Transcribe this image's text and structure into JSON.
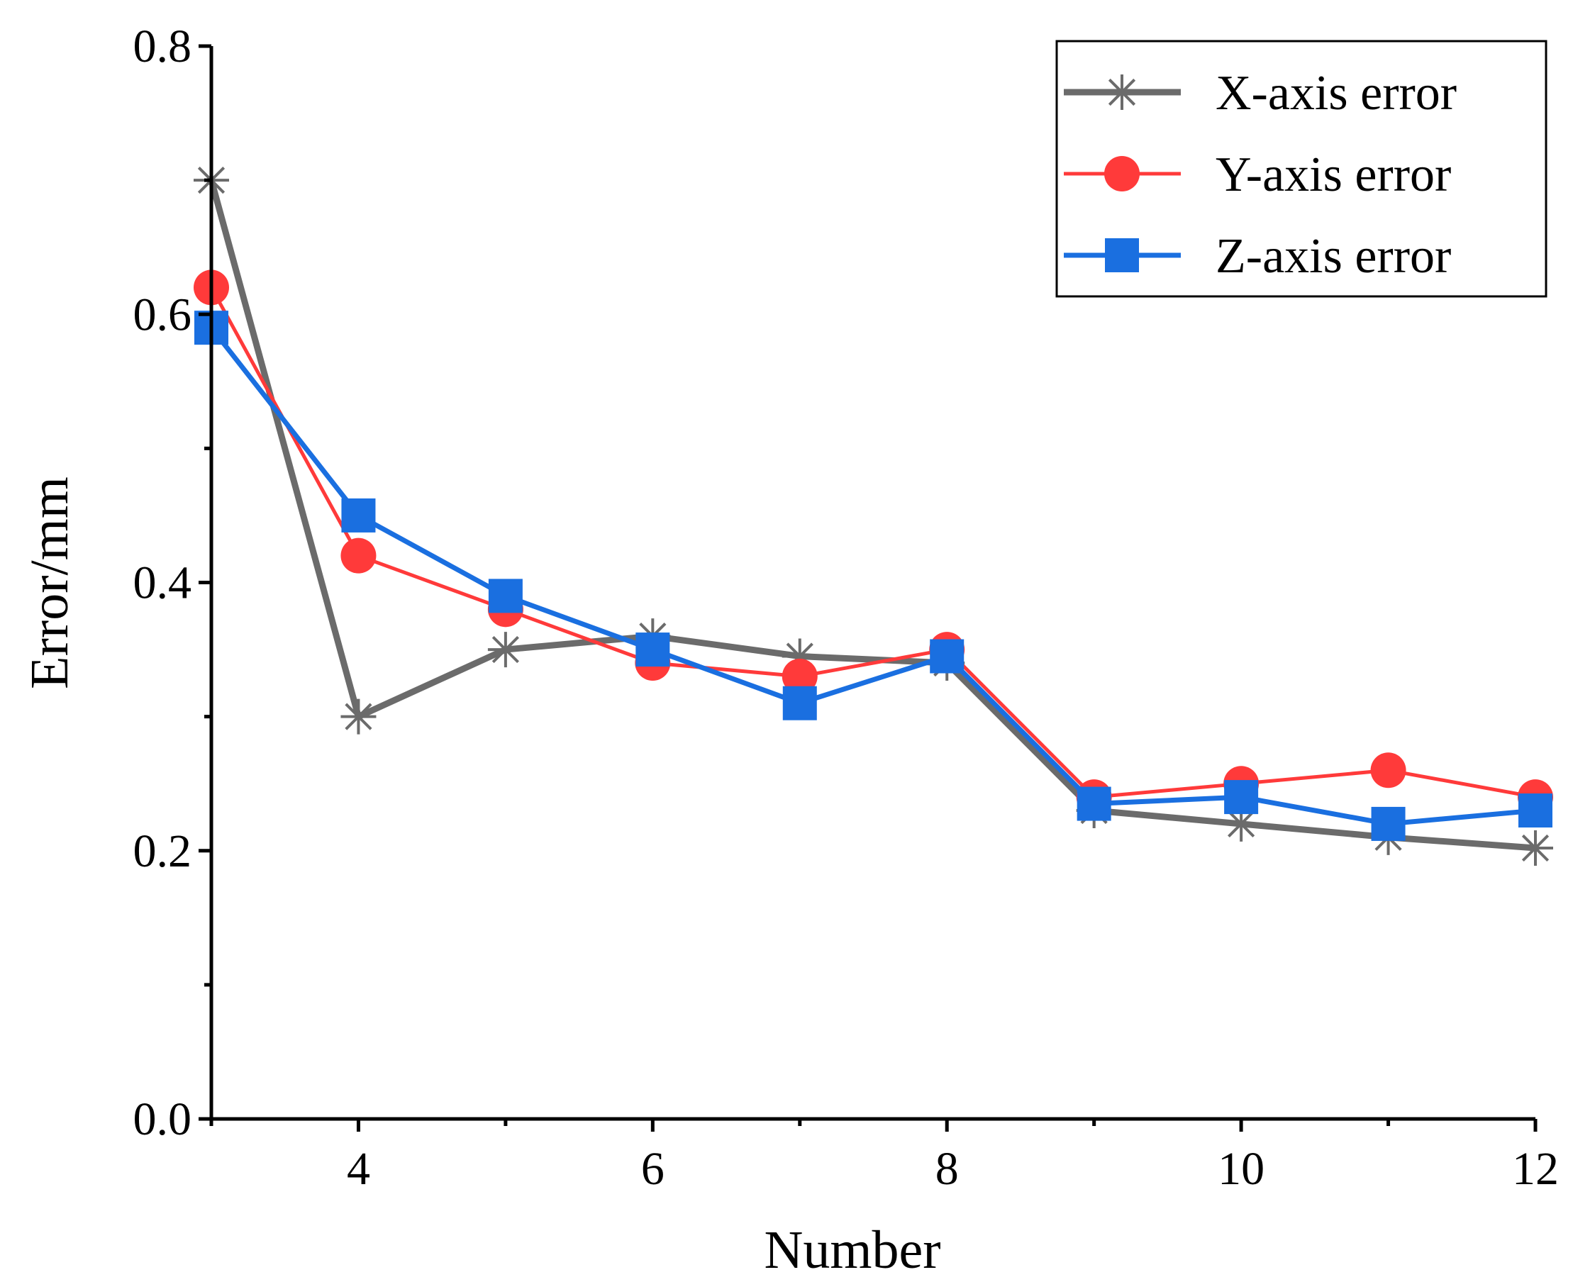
{
  "chart_data": {
    "type": "line",
    "title": "",
    "xlabel": "Number",
    "ylabel": "Error/mm",
    "xlim": [
      3,
      12
    ],
    "ylim": [
      0,
      0.8
    ],
    "xticks": [
      4,
      6,
      8,
      10,
      12
    ],
    "xtick_labels": [
      "4",
      "6",
      "8",
      "10",
      "12"
    ],
    "yticks": [
      0,
      0.2,
      0.4,
      0.6,
      0.8
    ],
    "ytick_labels": [
      "0.0",
      "0.2",
      "0.4",
      "0.6",
      "0.8"
    ],
    "x": [
      3,
      4,
      5,
      6,
      7,
      8,
      9,
      10,
      11,
      12
    ],
    "series": [
      {
        "name": "X-axis error",
        "color": "#6b6b6b",
        "marker": "asterisk",
        "values": [
          0.7,
          0.3,
          0.35,
          0.36,
          0.345,
          0.34,
          0.23,
          0.22,
          0.21,
          0.202
        ]
      },
      {
        "name": "Y-axis error",
        "color": "#ff3a3a",
        "marker": "circle",
        "values": [
          0.62,
          0.42,
          0.38,
          0.34,
          0.33,
          0.35,
          0.24,
          0.25,
          0.26,
          0.24
        ]
      },
      {
        "name": "Z-axis error",
        "color": "#1a6fe0",
        "marker": "square",
        "values": [
          0.59,
          0.45,
          0.39,
          0.35,
          0.31,
          0.345,
          0.235,
          0.24,
          0.22,
          0.23
        ]
      }
    ],
    "legend_position": "top-right",
    "grid": false
  }
}
